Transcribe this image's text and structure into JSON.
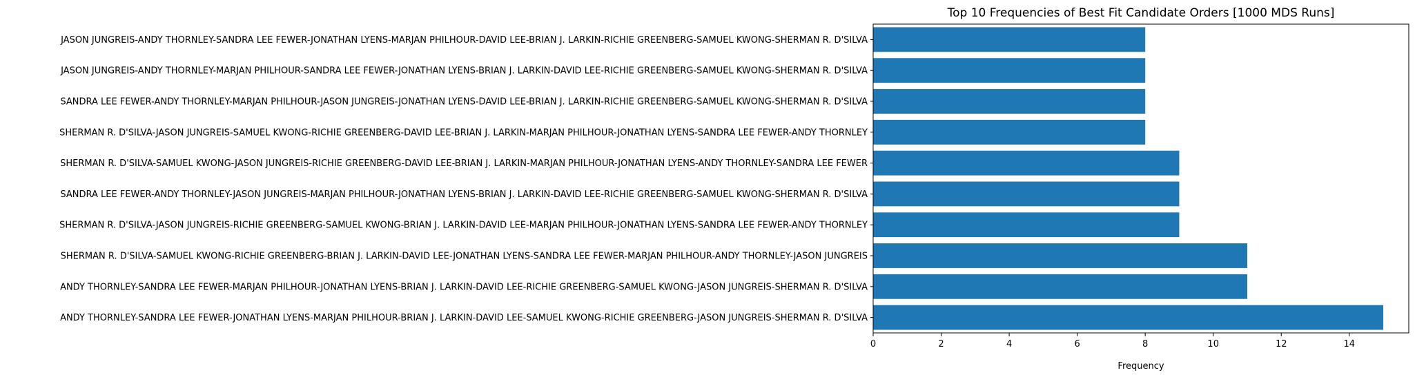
{
  "chart_data": {
    "type": "bar",
    "orientation": "horizontal",
    "title": "Top 10 Frequencies of Best Fit Candidate Orders [1000 MDS Runs]",
    "xlabel": "Frequency",
    "ylabel": "",
    "xlim": [
      0,
      15.75
    ],
    "x_ticks": [
      0,
      2,
      4,
      6,
      8,
      10,
      12,
      14
    ],
    "grid": false,
    "bar_color": "#1f77b4",
    "categories": [
      "ANDY THORNLEY-SANDRA LEE FEWER-JONATHAN LYENS-MARJAN PHILHOUR-BRIAN J. LARKIN-DAVID LEE-SAMUEL KWONG-RICHIE GREENBERG-JASON JUNGREIS-SHERMAN R. D'SILVA",
      "ANDY THORNLEY-SANDRA LEE FEWER-MARJAN PHILHOUR-JONATHAN LYENS-BRIAN J. LARKIN-DAVID LEE-RICHIE GREENBERG-SAMUEL KWONG-JASON JUNGREIS-SHERMAN R. D'SILVA",
      "SHERMAN R. D'SILVA-SAMUEL KWONG-RICHIE GREENBERG-BRIAN J. LARKIN-DAVID LEE-JONATHAN LYENS-SANDRA LEE FEWER-MARJAN PHILHOUR-ANDY THORNLEY-JASON JUNGREIS",
      "SHERMAN R. D'SILVA-JASON JUNGREIS-RICHIE GREENBERG-SAMUEL KWONG-BRIAN J. LARKIN-DAVID LEE-MARJAN PHILHOUR-JONATHAN LYENS-SANDRA LEE FEWER-ANDY THORNLEY",
      "SANDRA LEE FEWER-ANDY THORNLEY-JASON JUNGREIS-MARJAN PHILHOUR-JONATHAN LYENS-BRIAN J. LARKIN-DAVID LEE-RICHIE GREENBERG-SAMUEL KWONG-SHERMAN R. D'SILVA",
      "SHERMAN R. D'SILVA-SAMUEL KWONG-JASON JUNGREIS-RICHIE GREENBERG-DAVID LEE-BRIAN J. LARKIN-MARJAN PHILHOUR-JONATHAN LYENS-ANDY THORNLEY-SANDRA LEE FEWER",
      "SHERMAN R. D'SILVA-JASON JUNGREIS-SAMUEL KWONG-RICHIE GREENBERG-DAVID LEE-BRIAN J. LARKIN-MARJAN PHILHOUR-JONATHAN LYENS-SANDRA LEE FEWER-ANDY THORNLEY",
      "SANDRA LEE FEWER-ANDY THORNLEY-MARJAN PHILHOUR-JASON JUNGREIS-JONATHAN LYENS-DAVID LEE-BRIAN J. LARKIN-RICHIE GREENBERG-SAMUEL KWONG-SHERMAN R. D'SILVA",
      "JASON JUNGREIS-ANDY THORNLEY-MARJAN PHILHOUR-SANDRA LEE FEWER-JONATHAN LYENS-BRIAN J. LARKIN-DAVID LEE-RICHIE GREENBERG-SAMUEL KWONG-SHERMAN R. D'SILVA",
      "JASON JUNGREIS-ANDY THORNLEY-SANDRA LEE FEWER-JONATHAN LYENS-MARJAN PHILHOUR-DAVID LEE-BRIAN J. LARKIN-RICHIE GREENBERG-SAMUEL KWONG-SHERMAN R. D'SILVA"
    ],
    "values": [
      15,
      11,
      11,
      9,
      9,
      9,
      8,
      8,
      8,
      8
    ]
  }
}
